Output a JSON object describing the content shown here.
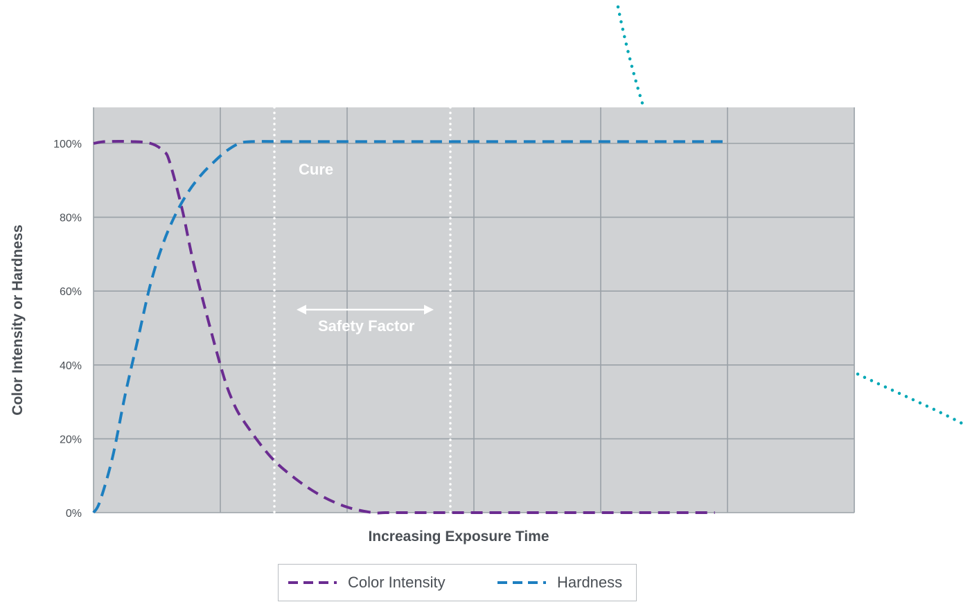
{
  "chart_data": {
    "type": "line",
    "xlabel": "Increasing Exposure Time",
    "ylabel": "Color Intensity or Hardness",
    "ylim": [
      0,
      100
    ],
    "xlim": [
      0,
      6
    ],
    "y_ticks": [
      "0%",
      "20%",
      "40%",
      "60%",
      "80%",
      "100%"
    ],
    "grid": true,
    "series": [
      {
        "name": "Color Intensity",
        "color": "#6b2c91",
        "style": "dashed",
        "x": [
          0,
          0.1,
          0.3,
          0.45,
          0.55,
          0.6,
          0.7,
          0.8,
          1.0,
          1.1,
          1.2,
          1.4,
          1.6,
          1.8,
          2.0,
          2.2,
          2.3,
          2.5,
          3.0,
          4.0,
          4.9
        ],
        "y": [
          100,
          100.5,
          100.5,
          100,
          98,
          95,
          82,
          66,
          40,
          30,
          24,
          15,
          9,
          4.5,
          1.5,
          0,
          0,
          0,
          0,
          0,
          0
        ]
      },
      {
        "name": "Hardness",
        "color": "#1d7fc0",
        "style": "dashed",
        "x": [
          0,
          0.05,
          0.15,
          0.25,
          0.35,
          0.45,
          0.55,
          0.65,
          0.75,
          0.85,
          0.95,
          1.05,
          1.15,
          1.25,
          1.5,
          2.0,
          3.0,
          4.0,
          5.0
        ],
        "y": [
          0,
          3,
          15,
          32,
          47,
          62,
          73,
          81,
          87,
          91.5,
          95,
          98,
          100,
          100.5,
          100.5,
          100.5,
          100.5,
          100.5,
          100.5
        ]
      }
    ],
    "annotations": [
      "Cure",
      "Safety Factor"
    ],
    "legend_position": "bottom-center"
  },
  "legend": {
    "items": [
      {
        "label": "Color Intensity",
        "color": "#6b2c91"
      },
      {
        "label": "Hardness",
        "color": "#1d7fc0"
      }
    ]
  },
  "colors": {
    "plot_background": "#d0d2d4",
    "grid": "#9aa1a7",
    "decoration_dotted": "#00a7b5"
  }
}
